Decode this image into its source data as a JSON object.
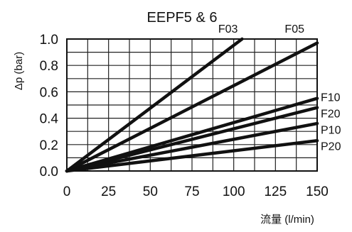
{
  "chart_data": {
    "type": "line",
    "title": "EEPF5 & 6",
    "xlabel": "流量 (l/min)",
    "ylabel": "Δp (bar)",
    "xlim": [
      0,
      150
    ],
    "ylim": [
      0,
      1.0
    ],
    "x_ticks": [
      "0",
      "25",
      "50",
      "75",
      "100",
      "125",
      "150"
    ],
    "y_ticks": [
      "0.0",
      "0.2",
      "0.4",
      "0.6",
      "0.8",
      "1.0"
    ],
    "grid": true,
    "series": [
      {
        "name": "F03",
        "x": [
          0,
          105
        ],
        "y": [
          0,
          1.0
        ]
      },
      {
        "name": "F05",
        "x": [
          0,
          150
        ],
        "y": [
          0,
          0.97
        ]
      },
      {
        "name": "F10",
        "x": [
          0,
          150
        ],
        "y": [
          0,
          0.55
        ]
      },
      {
        "name": "F20",
        "x": [
          0,
          150
        ],
        "y": [
          0,
          0.48
        ]
      },
      {
        "name": "P10",
        "x": [
          0,
          150
        ],
        "y": [
          0,
          0.36
        ]
      },
      {
        "name": "P20",
        "x": [
          0,
          150
        ],
        "y": [
          0,
          0.23
        ]
      }
    ]
  }
}
